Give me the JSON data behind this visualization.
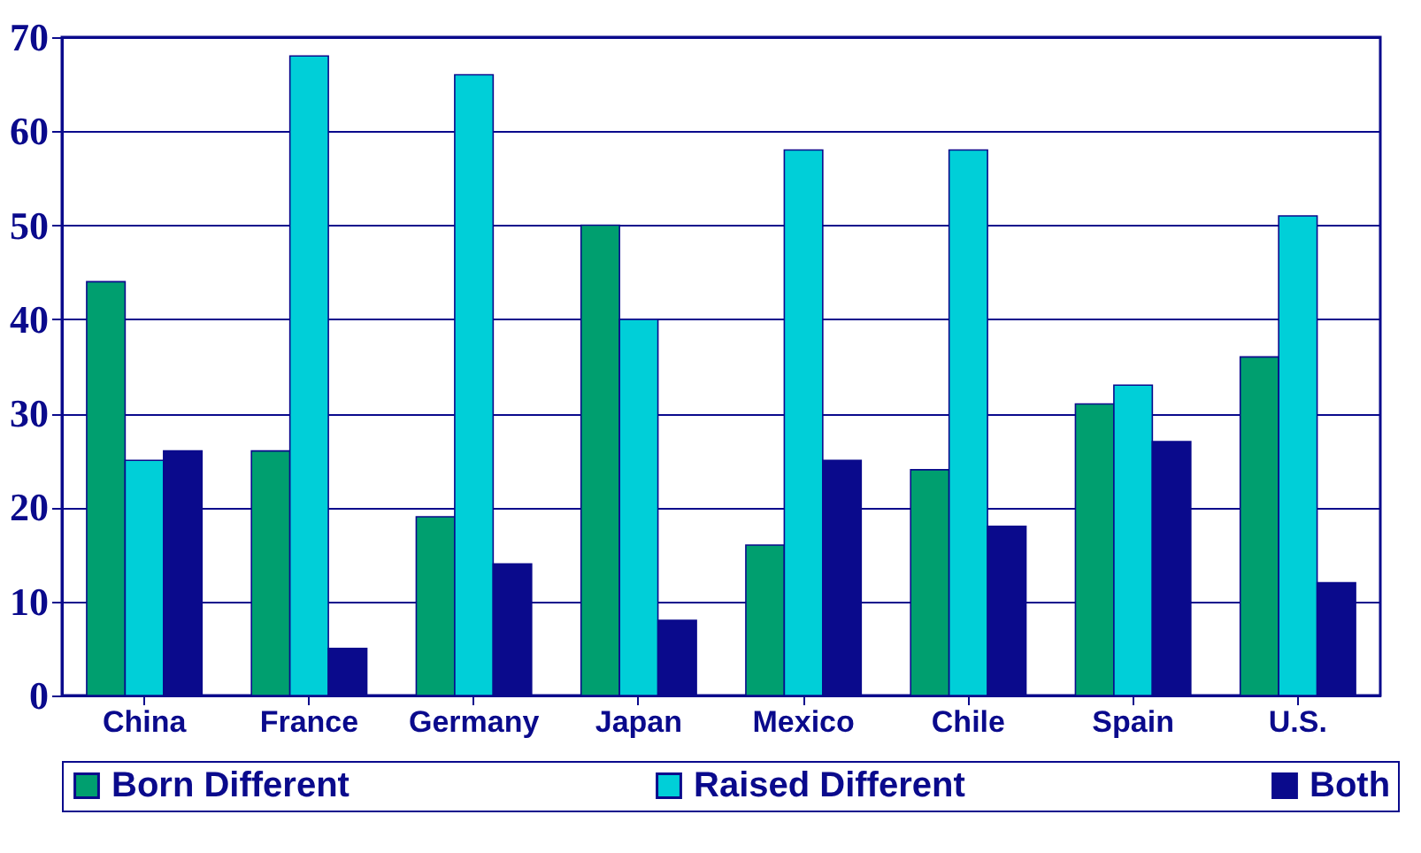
{
  "chart_data": {
    "type": "bar",
    "categories": [
      "China",
      "France",
      "Germany",
      "Japan",
      "Mexico",
      "Chile",
      "Spain",
      "U.S."
    ],
    "series": [
      {
        "name": "Born Different",
        "color": "#009f6f",
        "values": [
          44,
          26,
          19,
          50,
          16,
          24,
          31,
          36
        ]
      },
      {
        "name": "Raised Different",
        "color": "#00cfd8",
        "values": [
          25,
          68,
          66,
          40,
          58,
          58,
          33,
          51
        ]
      },
      {
        "name": "Both",
        "color": "#0a0a8c",
        "values": [
          26,
          5,
          14,
          8,
          25,
          18,
          27,
          12
        ]
      }
    ],
    "ylim": [
      0,
      70
    ],
    "yticks": [
      0,
      10,
      20,
      30,
      40,
      50,
      60,
      70
    ],
    "grid": "y",
    "legend": "bottom"
  }
}
